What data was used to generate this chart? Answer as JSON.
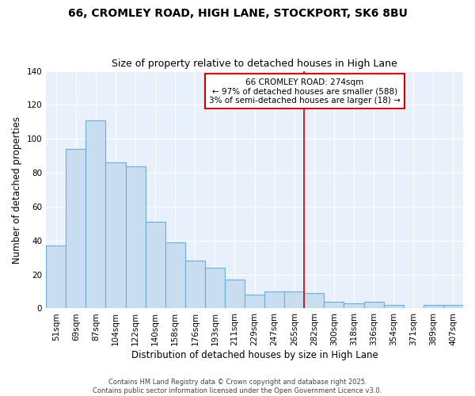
{
  "title": "66, CROMLEY ROAD, HIGH LANE, STOCKPORT, SK6 8BU",
  "subtitle": "Size of property relative to detached houses in High Lane",
  "xlabel": "Distribution of detached houses by size in High Lane",
  "ylabel": "Number of detached properties",
  "categories": [
    "51sqm",
    "69sqm",
    "87sqm",
    "104sqm",
    "122sqm",
    "140sqm",
    "158sqm",
    "176sqm",
    "193sqm",
    "211sqm",
    "229sqm",
    "247sqm",
    "265sqm",
    "282sqm",
    "300sqm",
    "318sqm",
    "336sqm",
    "354sqm",
    "371sqm",
    "389sqm",
    "407sqm"
  ],
  "values": [
    37,
    94,
    111,
    86,
    84,
    51,
    39,
    28,
    24,
    17,
    8,
    10,
    10,
    9,
    4,
    3,
    4,
    2,
    0,
    2,
    2
  ],
  "bar_color": "#c9ddf0",
  "bar_edge_color": "#6baed6",
  "plot_bg_color": "#e8f0fb",
  "fig_bg_color": "#ffffff",
  "grid_color": "#ffffff",
  "vline_x_index": 13,
  "vline_color": "#cc0000",
  "annotation_title": "66 CROMLEY ROAD: 274sqm",
  "annotation_line1": "← 97% of detached houses are smaller (588)",
  "annotation_line2": "3% of semi-detached houses are larger (18) →",
  "annotation_box_facecolor": "#ffffff",
  "annotation_box_edgecolor": "#cc0000",
  "ylim": [
    0,
    140
  ],
  "footer_line1": "Contains HM Land Registry data © Crown copyright and database right 2025.",
  "footer_line2": "Contains public sector information licensed under the Open Government Licence v3.0."
}
